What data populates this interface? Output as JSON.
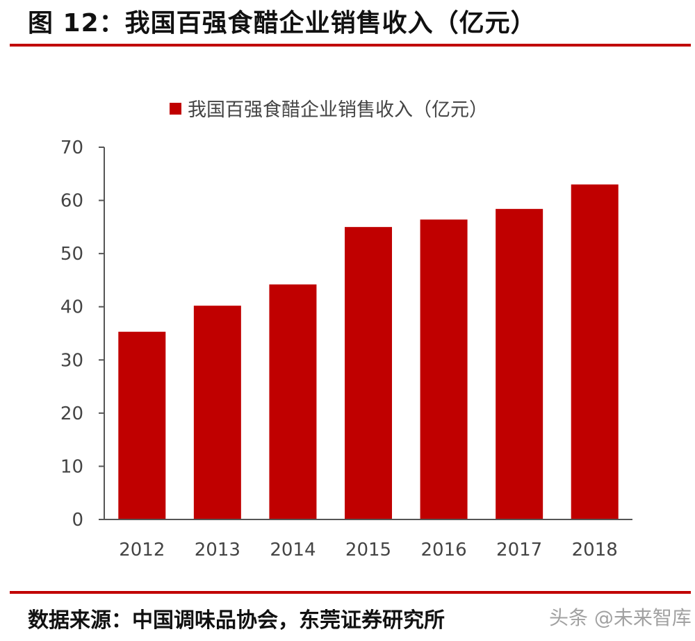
{
  "header": {
    "figure_title": "图 12：我国百强食醋企业销售收入（亿元）"
  },
  "footer": {
    "source": "数据来源：中国调味品协会，东莞证券研究所",
    "watermark": "头条 @未来智库"
  },
  "colors": {
    "bar": "#c00000",
    "rule": "#c00000",
    "axis": "#555555"
  },
  "chart_data": {
    "type": "bar",
    "title": "",
    "xlabel": "",
    "ylabel": "",
    "categories": [
      "2012",
      "2013",
      "2014",
      "2015",
      "2016",
      "2017",
      "2018"
    ],
    "series": [
      {
        "name": "我国百强食醋企业销售收入（亿元）",
        "values": [
          35.3,
          40.2,
          44.2,
          55.0,
          56.4,
          58.4,
          63.0
        ]
      }
    ],
    "ylim": [
      0,
      70
    ],
    "yticks": [
      0,
      10,
      20,
      30,
      40,
      50,
      60,
      70
    ],
    "grid": false,
    "legend_position": "top-center"
  }
}
